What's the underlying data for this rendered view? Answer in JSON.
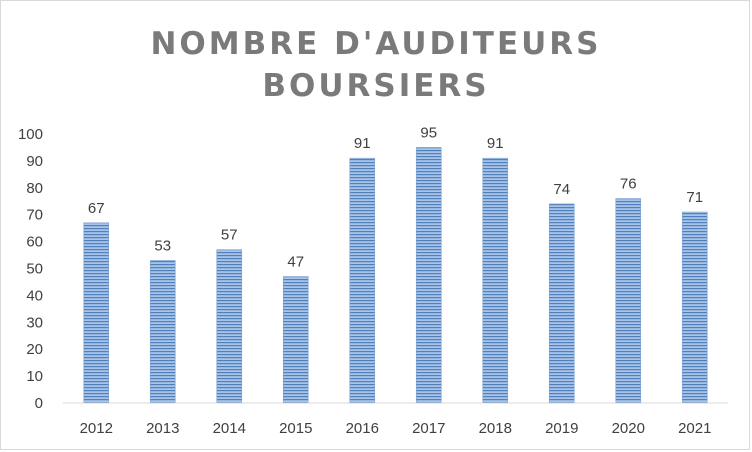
{
  "chart_data": {
    "type": "bar",
    "title_line1": "NOMBRE D'AUDITEURS",
    "title_line2": "BOURSIERS",
    "categories": [
      "2012",
      "2013",
      "2014",
      "2015",
      "2016",
      "2017",
      "2018",
      "2019",
      "2020",
      "2021"
    ],
    "values": [
      67,
      53,
      57,
      47,
      91,
      95,
      91,
      74,
      76,
      71
    ],
    "yticks": [
      "0",
      "10",
      "20",
      "30",
      "40",
      "50",
      "60",
      "70",
      "80",
      "90",
      "100"
    ],
    "ylim": [
      0,
      100
    ],
    "grid": false,
    "legend": "none",
    "colors": {
      "bar_fill": "#9dbbe3",
      "bar_stripe": "#4f81bd",
      "axis": "#d9d9d9",
      "title": "#7a7a7a"
    }
  }
}
